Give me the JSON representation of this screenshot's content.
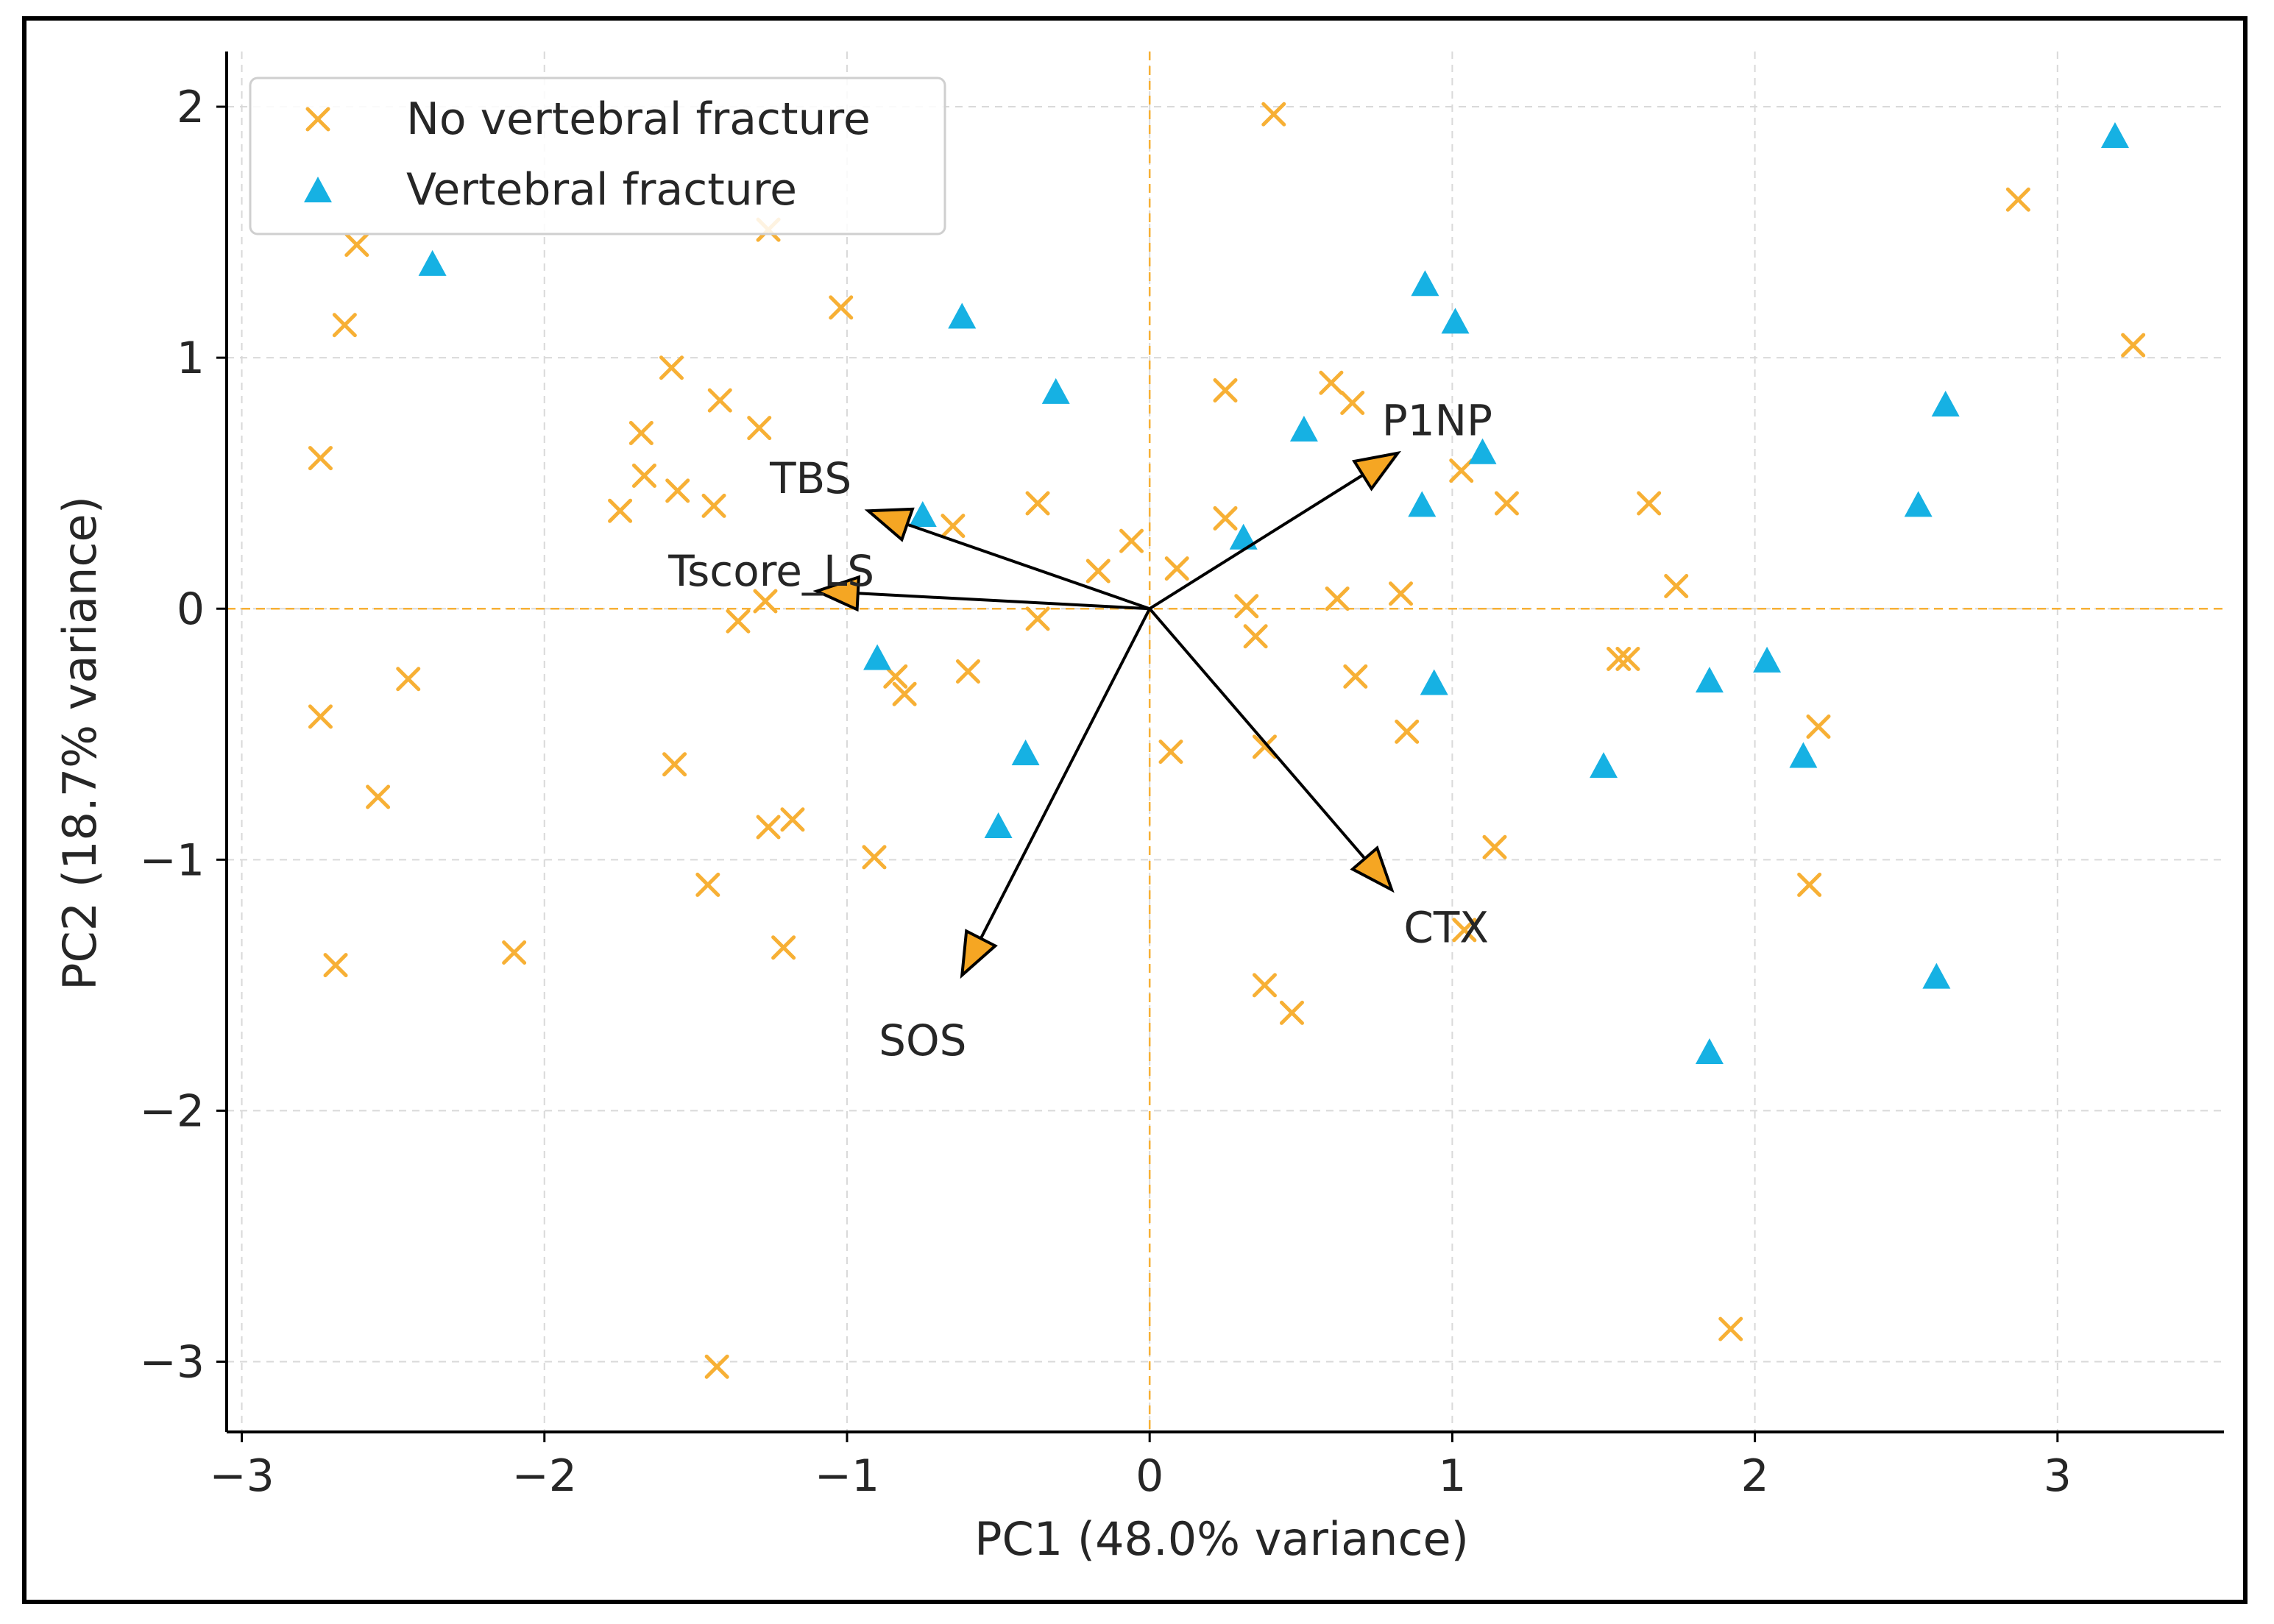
{
  "chart_data": {
    "type": "scatter",
    "title": "",
    "xlabel": "PC1 (48.0% variance)",
    "ylabel": "PC2 (18.7% variance)",
    "xlim": [
      -3.05,
      3.55
    ],
    "ylim": [
      -3.28,
      2.22
    ],
    "xticks": [
      -3,
      -2,
      -1,
      0,
      1,
      2,
      3
    ],
    "yticks": [
      -3,
      -2,
      -1,
      0,
      1,
      2
    ],
    "xtick_labels": [
      "−3",
      "−2",
      "−1",
      "0",
      "1",
      "2",
      "3"
    ],
    "ytick_labels": [
      "−3",
      "−2",
      "−1",
      "0",
      "1",
      "2"
    ],
    "grid": true,
    "legend_position": "top-left",
    "colors": {
      "no_fracture": "#F7B035",
      "fracture": "#16B1E3",
      "arrow_fill": "#F5A623",
      "zero_line": "#F7B035"
    },
    "series": [
      {
        "name": "No vertebral fracture",
        "marker": "x",
        "points": [
          [
            0.41,
            1.97
          ],
          [
            -1.26,
            1.51
          ],
          [
            -2.62,
            1.45
          ],
          [
            -2.66,
            1.13
          ],
          [
            -1.02,
            1.2
          ],
          [
            -1.58,
            0.96
          ],
          [
            -1.42,
            0.83
          ],
          [
            -1.29,
            0.72
          ],
          [
            -1.68,
            0.7
          ],
          [
            -2.74,
            0.6
          ],
          [
            -1.67,
            0.53
          ],
          [
            -1.56,
            0.47
          ],
          [
            -1.44,
            0.41
          ],
          [
            -1.75,
            0.39
          ],
          [
            -0.37,
            0.42
          ],
          [
            -0.65,
            0.33
          ],
          [
            -0.06,
            0.27
          ],
          [
            0.09,
            0.16
          ],
          [
            -0.17,
            0.15
          ],
          [
            0.25,
            0.36
          ],
          [
            0.25,
            0.87
          ],
          [
            0.6,
            0.9
          ],
          [
            0.67,
            0.82
          ],
          [
            1.03,
            0.55
          ],
          [
            1.18,
            0.42
          ],
          [
            1.65,
            0.42
          ],
          [
            1.74,
            0.09
          ],
          [
            0.83,
            0.06
          ],
          [
            0.62,
            0.04
          ],
          [
            0.32,
            0.01
          ],
          [
            0.35,
            -0.11
          ],
          [
            -1.27,
            0.03
          ],
          [
            -1.36,
            -0.05
          ],
          [
            -0.37,
            -0.04
          ],
          [
            -2.74,
            -0.43
          ],
          [
            -2.45,
            -0.28
          ],
          [
            -0.84,
            -0.27
          ],
          [
            -0.81,
            -0.34
          ],
          [
            -0.6,
            -0.25
          ],
          [
            0.68,
            -0.27
          ],
          [
            0.85,
            -0.49
          ],
          [
            0.38,
            -0.55
          ],
          [
            0.07,
            -0.57
          ],
          [
            -1.57,
            -0.62
          ],
          [
            -2.55,
            -0.75
          ],
          [
            -1.18,
            -0.84
          ],
          [
            -1.26,
            -0.87
          ],
          [
            -0.91,
            -0.99
          ],
          [
            -1.46,
            -1.1
          ],
          [
            1.14,
            -0.95
          ],
          [
            1.55,
            -0.2
          ],
          [
            1.58,
            -0.2
          ],
          [
            2.21,
            -0.47
          ],
          [
            2.18,
            -1.1
          ],
          [
            1.04,
            -1.28
          ],
          [
            -2.1,
            -1.37
          ],
          [
            -2.69,
            -1.42
          ],
          [
            -1.21,
            -1.35
          ],
          [
            0.38,
            -1.5
          ],
          [
            0.47,
            -1.61
          ],
          [
            -1.43,
            -3.02
          ],
          [
            1.92,
            -2.87
          ],
          [
            2.87,
            1.63
          ],
          [
            3.25,
            1.05
          ]
        ]
      },
      {
        "name": "Vertebral fracture",
        "marker": "^",
        "points": [
          [
            3.19,
            1.88
          ],
          [
            -2.37,
            1.37
          ],
          [
            -0.62,
            1.16
          ],
          [
            0.91,
            1.29
          ],
          [
            1.01,
            1.14
          ],
          [
            -0.31,
            0.86
          ],
          [
            0.51,
            0.71
          ],
          [
            1.1,
            0.62
          ],
          [
            0.9,
            0.41
          ],
          [
            2.63,
            0.81
          ],
          [
            2.54,
            0.41
          ],
          [
            -0.75,
            0.37
          ],
          [
            0.31,
            0.28
          ],
          [
            -0.9,
            -0.2
          ],
          [
            0.94,
            -0.3
          ],
          [
            1.85,
            -0.29
          ],
          [
            2.04,
            -0.21
          ],
          [
            2.16,
            -0.59
          ],
          [
            1.5,
            -0.63
          ],
          [
            -0.41,
            -0.58
          ],
          [
            -0.5,
            -0.87
          ],
          [
            2.6,
            -1.47
          ],
          [
            1.85,
            -1.77
          ]
        ]
      }
    ],
    "loadings": [
      {
        "name": "TBS",
        "end": [
          -0.93,
          0.39
        ],
        "label_pos": [
          -1.12,
          0.52
        ],
        "label": "TBS"
      },
      {
        "name": "Tscore_LS",
        "end": [
          -1.1,
          0.07
        ],
        "label_pos": [
          -1.25,
          0.15
        ],
        "label": "Tscore_LS"
      },
      {
        "name": "P1NP",
        "end": [
          0.82,
          0.62
        ],
        "label_pos": [
          0.95,
          0.75
        ],
        "label": "P1NP"
      },
      {
        "name": "CTX",
        "end": [
          0.8,
          -1.12
        ],
        "label_pos": [
          0.98,
          -1.27
        ],
        "label": "CTX"
      },
      {
        "name": "SOS",
        "end": [
          -0.62,
          -1.46
        ],
        "label_pos": [
          -0.75,
          -1.72
        ],
        "label": "SOS"
      }
    ]
  }
}
